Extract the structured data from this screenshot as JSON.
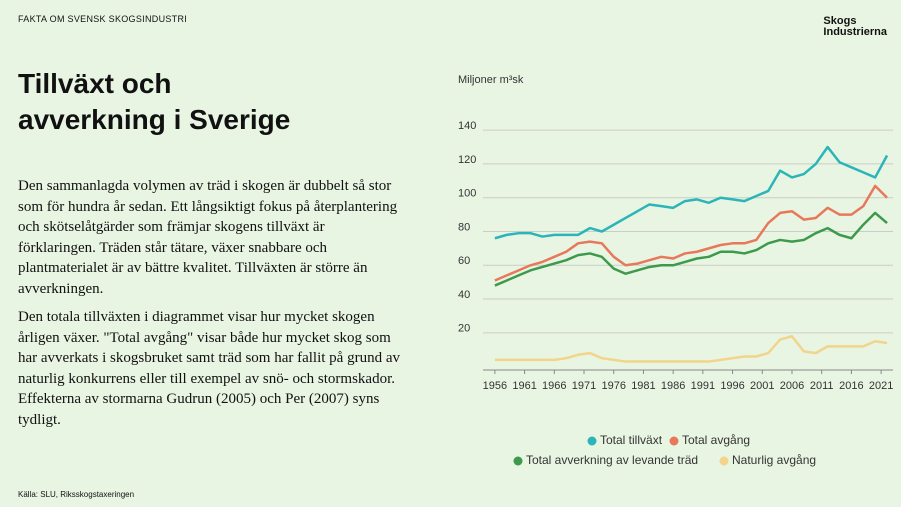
{
  "header": "FAKTA OM SVENSK SKOGSINDUSTRI",
  "logo": [
    "Skogs",
    "Industrierna"
  ],
  "title": [
    "Tillväxt och",
    "avverkning i Sverige"
  ],
  "paragraphs": [
    "Den sammanlagda volymen av träd i skogen är dubbelt så stor som för hundra år sedan. Ett långsiktigt fokus på återplantering och skötselåtgärder som främjar skogens tillväxt är förklaringen. Träden står tätare, växer snabbare och plantmaterialet är av bättre kvalitet. Tillväxten är större än avverkningen.",
    "Den totala tillväxten i diagrammet visar hur mycket skogen årligen växer. \"Total avgång\" visar både hur mycket skog som har avverkats i skogsbruket samt träd som har fallit på grund av naturlig konkurrens eller till exempel av snö- och stormskador. Effekterna av stormarna Gudrun (2005) och Per (2007) syns tydligt."
  ],
  "source": "Källa: SLU, Riksskogstaxeringen",
  "chart_data": {
    "type": "line",
    "y_label": "Miljoner m³sk",
    "x": [
      1956,
      1958,
      1960,
      1962,
      1964,
      1966,
      1968,
      1970,
      1972,
      1974,
      1976,
      1978,
      1980,
      1982,
      1984,
      1986,
      1988,
      1990,
      1992,
      1994,
      1996,
      1998,
      2000,
      2002,
      2004,
      2006,
      2008,
      2010,
      2012,
      2014,
      2016,
      2018,
      2020,
      2022
    ],
    "series": [
      {
        "name": "Total tillväxt",
        "color": "#2bb5b8",
        "values": [
          76,
          78,
          79,
          79,
          77,
          78,
          78,
          78,
          82,
          80,
          84,
          88,
          92,
          96,
          95,
          94,
          98,
          99,
          97,
          100,
          99,
          98,
          101,
          104,
          116,
          112,
          114,
          120,
          130,
          121,
          118,
          115,
          112,
          125
        ]
      },
      {
        "name": "Total avgång",
        "color": "#e8785a",
        "values": [
          51,
          54,
          57,
          60,
          62,
          65,
          68,
          73,
          74,
          73,
          65,
          60,
          61,
          63,
          65,
          64,
          67,
          68,
          70,
          72,
          73,
          73,
          75,
          85,
          91,
          92,
          87,
          88,
          94,
          90,
          90,
          95,
          107,
          100
        ]
      },
      {
        "name": "Total avverkning av levande träd",
        "color": "#3d9a4c",
        "values": [
          48,
          51,
          54,
          57,
          59,
          61,
          63,
          66,
          67,
          65,
          58,
          55,
          57,
          59,
          60,
          60,
          62,
          64,
          65,
          68,
          68,
          67,
          69,
          73,
          75,
          74,
          75,
          79,
          82,
          78,
          76,
          84,
          91,
          85
        ]
      },
      {
        "name": "Naturlig avgång",
        "color": "#f2d48a",
        "values": [
          4,
          4,
          4,
          4,
          4,
          4,
          5,
          7,
          8,
          5,
          4,
          3,
          3,
          3,
          3,
          3,
          3,
          3,
          3,
          4,
          5,
          6,
          6,
          8,
          16,
          18,
          9,
          8,
          12,
          12,
          12,
          12,
          15,
          14
        ]
      }
    ],
    "xlim": [
      1954,
      2023
    ],
    "xticks": [
      1956,
      1961,
      1966,
      1971,
      1976,
      1981,
      1986,
      1991,
      1996,
      2001,
      2006,
      2011,
      2016,
      2021
    ],
    "ylim": [
      -2,
      146
    ],
    "yticks": [
      20,
      40,
      60,
      80,
      100,
      120,
      140
    ],
    "grid": true
  }
}
